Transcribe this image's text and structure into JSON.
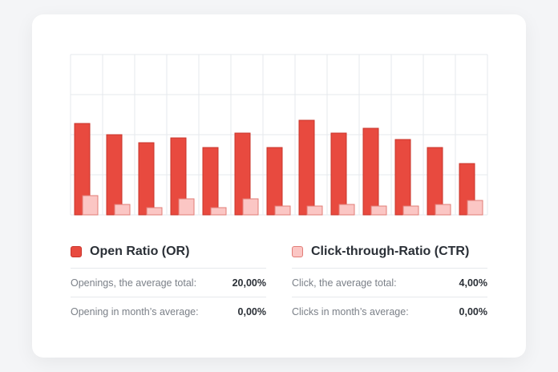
{
  "chart_data": {
    "type": "bar",
    "categories": [
      "",
      "",
      "",
      "",
      "",
      "",
      "",
      "",
      "",
      "",
      "",
      "",
      ""
    ],
    "series": [
      {
        "name": "Open Ratio (OR)",
        "color": "#e84a3f",
        "values": [
          57,
          50,
          45,
          48,
          42,
          51,
          42,
          59,
          51,
          54,
          47,
          42,
          32
        ]
      },
      {
        "name": "Click-through-Ratio (CTR)",
        "color": "#fbc6c4",
        "values": [
          12,
          6.5,
          4.5,
          10,
          4.5,
          10,
          5.5,
          5.5,
          6.5,
          5.5,
          5.5,
          6.5,
          9
        ]
      }
    ],
    "ylim": [
      0,
      100
    ],
    "grid": true,
    "axis_labels_shown": false
  },
  "legend": {
    "or": {
      "title": "Open Ratio (OR)",
      "rows": [
        {
          "label": "Openings, the average total:",
          "value": "20,00%"
        },
        {
          "label": "Opening in month’s average:",
          "value": "0,00%"
        }
      ]
    },
    "ctr": {
      "title": "Click-through-Ratio (CTR)",
      "rows": [
        {
          "label": "Click, the average total:",
          "value": "4,00%"
        },
        {
          "label": "Clicks in month’s average:",
          "value": "0,00%"
        }
      ]
    }
  }
}
